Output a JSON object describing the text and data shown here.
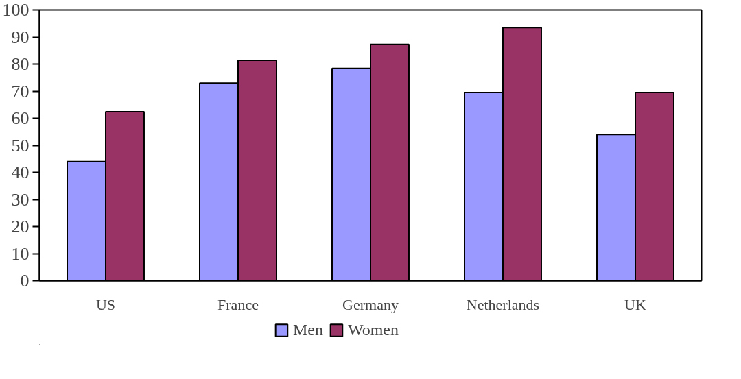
{
  "chart_data": {
    "type": "bar",
    "categories": [
      "US",
      "France",
      "Germany",
      "Netherlands",
      "UK"
    ],
    "series": [
      {
        "name": "Men",
        "color": "#9999ff",
        "values": [
          44,
          73,
          78.4,
          69.5,
          54
        ]
      },
      {
        "name": "Women",
        "color": "#993366",
        "values": [
          62.4,
          81.4,
          87.3,
          93.5,
          69.5
        ]
      }
    ],
    "ylim": [
      0,
      100
    ],
    "yticks": [
      0,
      10,
      20,
      30,
      40,
      50,
      60,
      70,
      80,
      90,
      100
    ],
    "grid": false,
    "legend": "bottom"
  }
}
